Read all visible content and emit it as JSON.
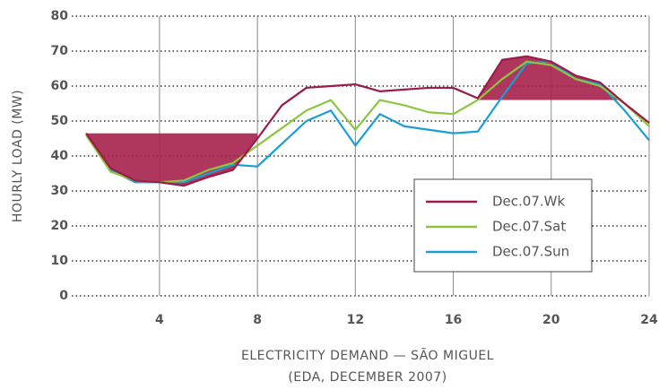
{
  "chart_data": {
    "type": "line",
    "title": "ELECTRICITY DEMAND — SÃO MIGUEL",
    "subtitle": "(EDA, DECEMBER 2007)",
    "y_label": "HOURLY LOAD (MW)",
    "x": [
      1,
      2,
      3,
      4,
      5,
      6,
      7,
      8,
      9,
      10,
      11,
      12,
      13,
      14,
      15,
      16,
      17,
      18,
      19,
      20,
      21,
      22,
      23,
      24
    ],
    "series": [
      {
        "name": "Dec.07.Wk",
        "color": "#9b1b4a",
        "values": [
          46.5,
          36.5,
          33,
          32.5,
          31.5,
          34,
          36,
          45,
          54.5,
          59.5,
          60,
          60.5,
          58.5,
          59,
          59.5,
          59.5,
          56.5,
          67.5,
          68.5,
          67,
          63,
          61,
          55,
          49.5
        ]
      },
      {
        "name": "Dec.07.Sat",
        "color": "#8cc63f",
        "values": [
          46,
          35.5,
          33,
          32.5,
          33,
          36,
          38,
          43,
          48,
          53,
          56,
          47.5,
          56,
          54.5,
          52.5,
          52,
          56,
          62,
          67,
          66,
          62,
          60,
          55,
          48.5
        ]
      },
      {
        "name": "Dec.07.Sun",
        "color": "#1a9fd4",
        "values": [
          46,
          36,
          32.5,
          32.5,
          32.5,
          35,
          37.5,
          37,
          43.5,
          50,
          53,
          43,
          52,
          48.5,
          47.5,
          46.5,
          47,
          57,
          66.5,
          67,
          62,
          60.5,
          53,
          44.5
        ]
      }
    ],
    "highlight_bands": [
      {
        "from": 1,
        "to": 8,
        "level": 46.5,
        "side": "below"
      },
      {
        "from": 17,
        "to": 23,
        "level": 56,
        "side": "above"
      }
    ],
    "highlight_color": "#a8264f",
    "xlim": [
      1,
      24
    ],
    "xticks": [
      4,
      8,
      12,
      16,
      20,
      24
    ],
    "ylim": [
      0,
      80
    ],
    "yticks": [
      0,
      10,
      20,
      30,
      40,
      50,
      60,
      70,
      80
    ],
    "grid": true
  }
}
